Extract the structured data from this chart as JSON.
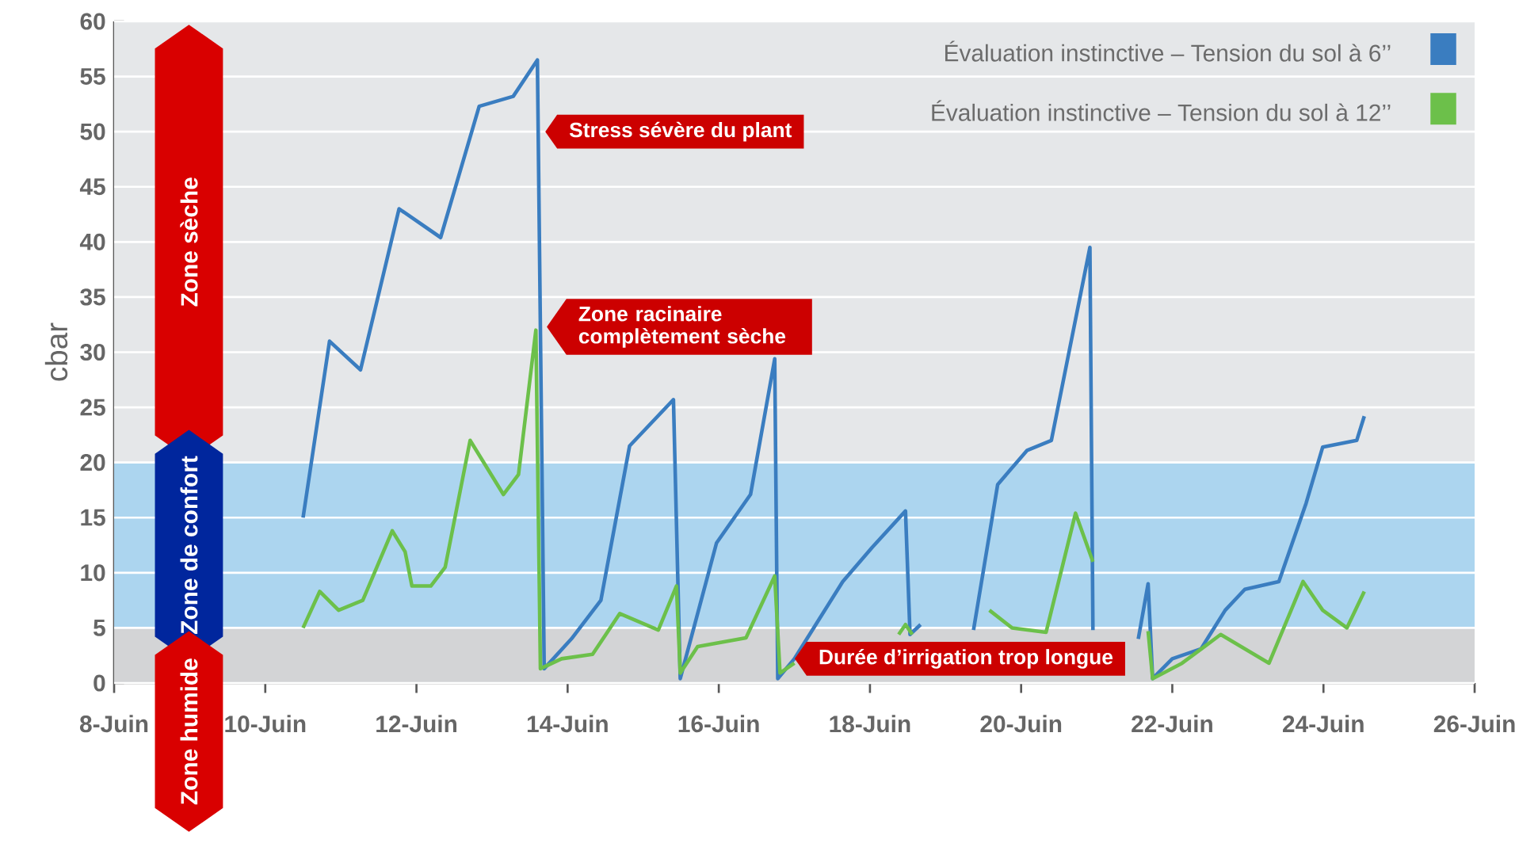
{
  "chart_data": {
    "type": "line",
    "ylabel": "cbar",
    "xlim": [
      8,
      26
    ],
    "ylim": [
      0,
      60
    ],
    "xticks": [
      {
        "value": 8,
        "label": "8-Juin"
      },
      {
        "value": 10,
        "label": "10-Juin"
      },
      {
        "value": 12,
        "label": "12-Juin"
      },
      {
        "value": 14,
        "label": "14-Juin"
      },
      {
        "value": 16,
        "label": "16-Juin"
      },
      {
        "value": 18,
        "label": "18-Juin"
      },
      {
        "value": 20,
        "label": "20-Juin"
      },
      {
        "value": 22,
        "label": "22-Juin"
      },
      {
        "value": 24,
        "label": "24-Juin"
      },
      {
        "value": 26,
        "label": "26-Juin"
      }
    ],
    "yticks": [
      0,
      5,
      10,
      15,
      20,
      25,
      30,
      35,
      40,
      45,
      50,
      55,
      60
    ],
    "grid": "y",
    "legend": "top right",
    "marker": "none",
    "line_style": "solid",
    "bands": [
      {
        "axis": "y",
        "from": 20,
        "to": 60,
        "label": "Zone sèche",
        "color": "#e5e7e9"
      },
      {
        "axis": "y",
        "from": 5,
        "to": 20,
        "label": "Zone de confort",
        "color": "#acd5ef"
      },
      {
        "axis": "y",
        "from": 0,
        "to": 5,
        "label": "Zone humide",
        "color": "#d3d4d6"
      }
    ],
    "annotations": [
      "Stress sévère du plant",
      "Zone racinaire complètement sèche",
      {
        "text": "Durée d’irrigation trop longue",
        "x": 17.0,
        "y": 2.2
      }
    ],
    "series": [
      {
        "name": "Évaluation instinctive – Tension du sol à 6’’",
        "color": "#3a7dc0",
        "x": [
          10.5,
          10.85,
          11.26,
          11.77,
          12.32,
          12.83,
          13.28,
          13.6,
          13.69,
          14.05,
          14.44,
          14.82,
          15.4,
          15.49,
          15.97,
          16.42,
          16.74,
          16.78,
          17.0,
          17.64,
          18.03,
          18.47,
          18.53,
          18.67,
          19.0,
          19.37,
          19.69,
          20.08,
          20.4,
          20.91,
          20.95,
          21.3,
          21.55,
          21.68,
          21.74,
          22.0,
          22.38,
          22.7,
          22.96,
          23.41,
          23.77,
          23.99,
          24.44,
          24.54
        ],
        "values": [
          15,
          31,
          28.4,
          43,
          40.4,
          52.3,
          53.2,
          56.5,
          1.3,
          4,
          7.5,
          21.5,
          25.7,
          0.4,
          12.7,
          17.1,
          29.4,
          0.4,
          2.2,
          9.2,
          12.3,
          15.6,
          4.4,
          5.3,
          null,
          4.8,
          18,
          21.1,
          22,
          39.5,
          4.8,
          null,
          4,
          9,
          0.4,
          2.2,
          3.1,
          6.6,
          8.5,
          9.2,
          16.3,
          21.4,
          22,
          24.2
        ]
      },
      {
        "name": "Évaluation instinctive – Tension du sol à 12’’",
        "color": "#6cc04a",
        "x": [
          10.5,
          10.72,
          10.97,
          11.29,
          11.68,
          11.85,
          11.94,
          12.19,
          12.38,
          12.71,
          13.15,
          13.35,
          13.58,
          13.64,
          13.92,
          14.33,
          14.69,
          15.2,
          15.44,
          15.49,
          15.72,
          16.36,
          16.74,
          16.81,
          17.0,
          17.5,
          18.38,
          18.47,
          18.56,
          19.0,
          19.58,
          19.88,
          20.33,
          20.72,
          20.95,
          21.3,
          21.68,
          21.74,
          22.13,
          22.64,
          23.28,
          23.73,
          23.99,
          24.31,
          24.54
        ],
        "values": [
          5,
          8.3,
          6.6,
          7.5,
          13.8,
          11.9,
          8.8,
          8.8,
          10.5,
          22,
          17.1,
          18.9,
          32,
          1.3,
          2.2,
          2.6,
          6.3,
          4.8,
          8.8,
          0.9,
          3.3,
          4.1,
          9.7,
          0.9,
          1.8,
          null,
          4.4,
          5.3,
          4.4,
          null,
          6.6,
          5,
          4.6,
          15.4,
          11,
          null,
          4.7,
          0.4,
          1.8,
          4.4,
          1.8,
          9.2,
          6.6,
          5,
          8.3
        ]
      }
    ]
  }
}
